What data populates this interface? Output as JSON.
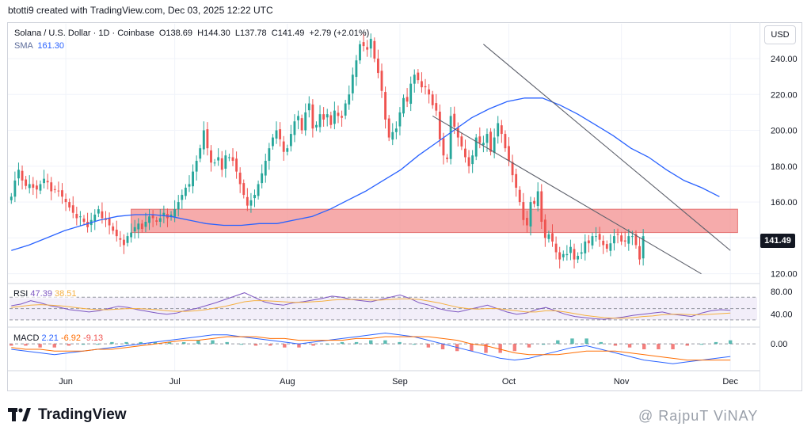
{
  "header": {
    "attribution": "btotti9 created with TradingView.com, Dec 03, 2025 12:22 UTC"
  },
  "legend": {
    "symbol": "Solana / U.S. Dollar · 1D · Coinbase",
    "open": "O138.69",
    "high": "H144.30",
    "low": "L137.78",
    "close": "C141.49",
    "change": "+2.79 (+2.01%)",
    "sma_label": "SMA",
    "sma_value": "161.30"
  },
  "axis": {
    "currency": "USD"
  },
  "rsi_legend": {
    "label": "RSI",
    "value": "47.39",
    "ma": "38.51"
  },
  "macd_legend": {
    "label": "MACD",
    "v1": "2.21",
    "v2": "-6.92",
    "v3": "-9.13"
  },
  "last_price": "141.49",
  "brand": {
    "name": "TradingView"
  },
  "watermark": "@ RajpuT ViNAY",
  "colors": {
    "up": "#26a69a",
    "down": "#ef5350",
    "sma": "#2962ff",
    "zone": "#f28b8b",
    "rsi": "#7e57c2",
    "rsi_ma": "#f5b041",
    "macd": "#2962ff",
    "signal": "#ff6d00"
  },
  "chart_data": [
    {
      "type": "line",
      "title": "Solana / U.S. Dollar · 1D · Coinbase",
      "ylabel": "USD",
      "ylim": [
        115,
        255
      ],
      "yticks": [
        120,
        140,
        160,
        180,
        200,
        220,
        240
      ],
      "ytick_labels": [
        "120.00",
        "",
        "160.00",
        "180.00",
        "200.00",
        "220.00",
        "240.00"
      ],
      "x_months": [
        "Jun",
        "Jul",
        "Aug",
        "Sep",
        "Oct",
        "Nov",
        "Dec"
      ],
      "x_month_index": [
        15,
        45,
        76,
        107,
        137,
        168,
        198
      ],
      "close_series": {
        "name": "Close (daily, approx.)",
        "start_index": 0,
        "values": [
          163,
          172,
          178,
          172,
          169,
          170,
          168,
          167,
          170,
          173,
          171,
          166,
          167,
          166,
          163,
          160,
          157,
          154,
          151,
          152,
          149,
          146,
          150,
          153,
          156,
          151,
          150,
          147,
          144,
          141,
          139,
          136,
          141,
          143,
          146,
          148,
          145,
          149,
          152,
          151,
          149,
          151,
          154,
          151,
          153,
          156,
          160,
          164,
          168,
          170,
          177,
          183,
          190,
          200,
          190,
          182,
          182,
          185,
          178,
          186,
          185,
          183,
          177,
          170,
          164,
          158,
          161,
          164,
          170,
          176,
          183,
          190,
          196,
          200,
          195,
          188,
          190,
          198,
          205,
          208,
          200,
          210,
          215,
          201,
          203,
          209,
          206,
          209,
          203,
          211,
          208,
          207,
          215,
          220,
          231,
          239,
          248,
          247,
          245,
          251,
          240,
          232,
          222,
          206,
          196,
          199,
          201,
          210,
          218,
          216,
          226,
          231,
          228,
          224,
          224,
          220,
          214,
          211,
          195,
          186,
          184,
          208,
          202,
          196,
          191,
          185,
          180,
          186,
          196,
          193,
          193,
          198,
          188,
          196,
          204,
          198,
          190,
          183,
          175,
          168,
          160,
          150,
          147,
          160,
          159,
          166,
          149,
          140,
          142,
          138,
          132,
          128,
          131,
          131,
          135,
          128,
          130,
          132,
          138,
          137,
          141,
          141,
          139,
          136,
          134,
          137,
          141,
          142,
          138,
          138,
          141,
          141,
          136,
          128,
          141
        ]
      },
      "sma_series": {
        "name": "SMA",
        "last": 161.3,
        "values": [
          133,
          136,
          140,
          144,
          147,
          150,
          152,
          153,
          153,
          152,
          150,
          148,
          147,
          147,
          148,
          148,
          150,
          152,
          156,
          161,
          166,
          172,
          178,
          186,
          193,
          200,
          207,
          212,
          216,
          218,
          218,
          214,
          209,
          203,
          197,
          190,
          185,
          178,
          172,
          168,
          163
        ]
      },
      "resistance_zone": {
        "from": 143,
        "to": 156
      },
      "trendlines": [
        {
          "name": "upper",
          "points": [
            [
              130,
              248
            ],
            [
              198,
              133
            ]
          ]
        },
        {
          "name": "lower",
          "points": [
            [
              116,
              208
            ],
            [
              190,
              120
            ]
          ]
        }
      ],
      "last_price": 141.49
    },
    {
      "type": "line",
      "title": "RSI",
      "ylim": [
        20,
        90
      ],
      "yticks": [
        40,
        80
      ],
      "ytick_labels": [
        "40.00",
        "80.00"
      ],
      "bands": [
        30,
        50,
        70
      ],
      "series": [
        {
          "name": "RSI",
          "last": 47.39,
          "values": [
            55,
            58,
            64,
            60,
            55,
            52,
            48,
            46,
            44,
            46,
            50,
            54,
            52,
            48,
            45,
            42,
            40,
            42,
            47,
            50,
            55,
            60,
            66,
            72,
            78,
            70,
            62,
            58,
            56,
            60,
            62,
            65,
            68,
            72,
            70,
            66,
            64,
            62,
            66,
            70,
            74,
            68,
            60,
            56,
            50,
            46,
            44,
            48,
            52,
            56,
            50,
            44,
            40,
            42,
            48,
            52,
            46,
            40,
            36,
            34,
            32,
            31,
            33,
            35,
            38,
            40,
            42,
            44,
            40,
            38,
            36,
            42,
            46,
            48,
            47
          ]
        },
        {
          "name": "RSI-based MA",
          "last": 38.51,
          "values": [
            52,
            54,
            56,
            57,
            56,
            55,
            53,
            51,
            49,
            48,
            48,
            49,
            50,
            50,
            49,
            48,
            46,
            45,
            45,
            46,
            48,
            51,
            54,
            58,
            62,
            64,
            64,
            63,
            62,
            61,
            61,
            62,
            63,
            65,
            66,
            66,
            66,
            65,
            65,
            66,
            67,
            67,
            66,
            63,
            60,
            56,
            52,
            50,
            49,
            50,
            50,
            48,
            46,
            44,
            44,
            46,
            46,
            44,
            41,
            38,
            36,
            34,
            33,
            33,
            34,
            36,
            37,
            39,
            40,
            40,
            39,
            39,
            40,
            41,
            42
          ]
        }
      ]
    },
    {
      "type": "bar",
      "title": "MACD",
      "ylim": [
        -14,
        8
      ],
      "yticks": [
        0
      ],
      "ytick_labels": [
        "0.00"
      ],
      "series": [
        {
          "name": "MACD",
          "last": -6.92,
          "values": [
            -3,
            -4,
            -5,
            -6,
            -5,
            -4,
            -3,
            -2,
            -1,
            0,
            1,
            2,
            3,
            4,
            5,
            5,
            4,
            3,
            2,
            1,
            0,
            1,
            2,
            3,
            4,
            5,
            6,
            5,
            4,
            2,
            0,
            -2,
            -4,
            -6,
            -8,
            -9,
            -8,
            -6,
            -4,
            -2,
            -1,
            -3,
            -5,
            -7,
            -9,
            -10,
            -11,
            -10,
            -9,
            -8,
            -7
          ]
        },
        {
          "name": "Signal",
          "last": -9.13,
          "values": [
            -2,
            -3,
            -3,
            -4,
            -4,
            -4,
            -3,
            -3,
            -2,
            -1,
            0,
            1,
            2,
            2,
            3,
            4,
            4,
            4,
            3,
            3,
            2,
            2,
            2,
            2,
            3,
            3,
            4,
            4,
            4,
            4,
            3,
            2,
            0,
            -1,
            -3,
            -5,
            -6,
            -6,
            -6,
            -5,
            -4,
            -4,
            -4,
            -5,
            -6,
            -7,
            -8,
            -9,
            -9,
            -9,
            -9
          ]
        },
        {
          "name": "Histogram",
          "last": 2.21,
          "values": [
            -1,
            -1,
            -2,
            -2,
            -1,
            0,
            0,
            1,
            1,
            1,
            1,
            1,
            1,
            2,
            2,
            1,
            0,
            -1,
            -1,
            -2,
            -2,
            -1,
            0,
            1,
            1,
            2,
            2,
            1,
            0,
            -2,
            -3,
            -4,
            -4,
            -5,
            -5,
            -4,
            -2,
            0,
            2,
            3,
            3,
            1,
            -1,
            -2,
            -3,
            -3,
            -3,
            -1,
            0,
            1,
            2
          ]
        }
      ]
    }
  ]
}
